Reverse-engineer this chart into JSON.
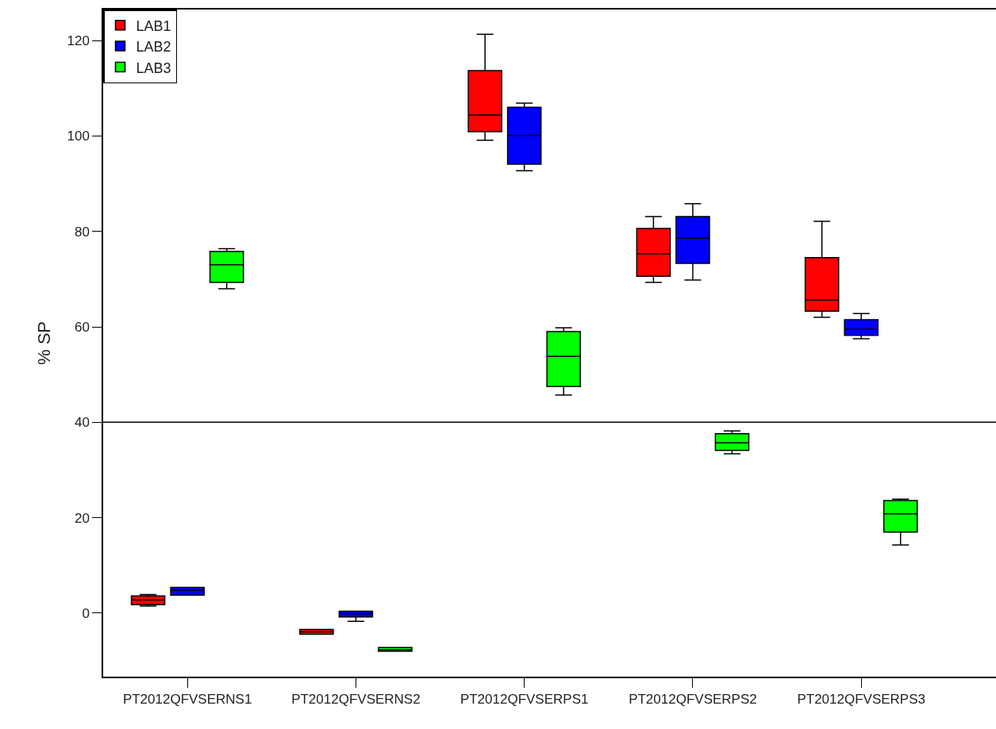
{
  "chart_data": {
    "type": "box",
    "ylabel": "% SP",
    "categories": [
      "PT2012QFVSERNS1",
      "PT2012QFVSERNS2",
      "PT2012QFVSERPS1",
      "PT2012QFVSERPS2",
      "PT2012QFVSERPS3"
    ],
    "ylim": [
      -13.3,
      126.5
    ],
    "yticks": [
      0,
      20,
      40,
      60,
      80,
      100,
      120
    ],
    "legend": "top left",
    "ref_lines": [
      {
        "axis": "y",
        "value": 40,
        "color": "#000000"
      }
    ],
    "series": [
      {
        "name": "LAB1",
        "color": "#ff0000",
        "boxes": [
          {
            "low": 1.5,
            "q1": 1.8,
            "median": 2.8,
            "q3": 3.6,
            "high": 3.9
          },
          {
            "low": -4.4,
            "q1": -4.4,
            "median": -3.9,
            "q3": -3.4,
            "high": -3.4
          },
          {
            "low": 99.1,
            "q1": 100.9,
            "median": 104.4,
            "q3": 113.7,
            "high": 121.3
          },
          {
            "low": 69.3,
            "q1": 70.6,
            "median": 75.3,
            "q3": 80.6,
            "high": 83.1
          },
          {
            "low": 62.0,
            "q1": 63.3,
            "median": 65.6,
            "q3": 74.5,
            "high": 82.1
          }
        ]
      },
      {
        "name": "LAB2",
        "color": "#0000ff",
        "boxes": [
          {
            "low": 3.8,
            "q1": 3.8,
            "median": 4.8,
            "q3": 5.4,
            "high": 5.4
          },
          {
            "low": -1.7,
            "q1": -0.8,
            "median": -0.1,
            "q3": 0.4,
            "high": 0.4
          },
          {
            "low": 92.7,
            "q1": 94.1,
            "median": 100.1,
            "q3": 106.0,
            "high": 106.9
          },
          {
            "low": 69.8,
            "q1": 73.3,
            "median": 78.6,
            "q3": 83.1,
            "high": 85.8
          },
          {
            "low": 57.5,
            "q1": 58.2,
            "median": 59.5,
            "q3": 61.5,
            "high": 62.8
          }
        ]
      },
      {
        "name": "LAB3",
        "color": "#00ff00",
        "boxes": [
          {
            "low": 68.0,
            "q1": 69.3,
            "median": 73.0,
            "q3": 75.8,
            "high": 76.4
          },
          {
            "low": -8.0,
            "q1": -8.0,
            "median": -7.7,
            "q3": -7.2,
            "high": -7.2
          },
          {
            "low": 45.7,
            "q1": 47.5,
            "median": 53.8,
            "q3": 59.0,
            "high": 59.8
          },
          {
            "low": 33.4,
            "q1": 34.1,
            "median": 35.7,
            "q3": 37.6,
            "high": 38.2
          },
          {
            "low": 14.3,
            "q1": 17.0,
            "median": 20.8,
            "q3": 23.6,
            "high": 23.9
          }
        ]
      }
    ]
  }
}
